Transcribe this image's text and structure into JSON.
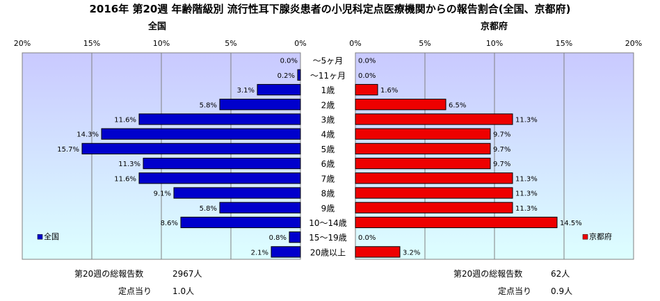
{
  "title": "2016年 第20週 年齢階級別 流行性耳下腺炎患者の小児科定点医療機関からの報告割合(全国、京都府)",
  "colors": {
    "national_bar": "#0000CC",
    "kyoto_bar": "#EE0000",
    "plot_top": "#C9C9FF",
    "plot_bottom": "#DDFFFF"
  },
  "chart_data": [
    {
      "type": "bar",
      "orientation": "horizontal",
      "direction": "right-to-left",
      "title": "全国",
      "legend": "全国",
      "legend_position": "bottom-left",
      "xlim": [
        0,
        20
      ],
      "x_ticks": [
        "20%",
        "15%",
        "10%",
        "5%",
        "0%"
      ],
      "grid": true,
      "categories": [
        "～5ヶ月",
        "～11ヶ月",
        "1歳",
        "2歳",
        "3歳",
        "4歳",
        "5歳",
        "6歳",
        "7歳",
        "8歳",
        "9歳",
        "10～14歳",
        "15～19歳",
        "20歳以上"
      ],
      "values": [
        0.0,
        0.2,
        3.1,
        5.8,
        11.6,
        14.3,
        15.7,
        11.3,
        11.6,
        9.1,
        5.8,
        8.6,
        0.8,
        2.1
      ],
      "labels": [
        "0.0%",
        "0.2%",
        "3.1%",
        "5.8%",
        "11.6%",
        "14.3%",
        "15.7%",
        "11.3%",
        "11.6%",
        "9.1%",
        "5.8%",
        "8.6%",
        "0.8%",
        "2.1%"
      ]
    },
    {
      "type": "bar",
      "orientation": "horizontal",
      "direction": "left-to-right",
      "title": "京都府",
      "legend": "京都府",
      "legend_position": "bottom-right",
      "xlim": [
        0,
        20
      ],
      "x_ticks": [
        "0%",
        "5%",
        "10%",
        "15%",
        "20%"
      ],
      "grid": true,
      "categories": [
        "～5ヶ月",
        "～11ヶ月",
        "1歳",
        "2歳",
        "3歳",
        "4歳",
        "5歳",
        "6歳",
        "7歳",
        "8歳",
        "9歳",
        "10～14歳",
        "15～19歳",
        "20歳以上"
      ],
      "values": [
        0.0,
        0.0,
        1.6,
        6.5,
        11.3,
        9.7,
        9.7,
        9.7,
        11.3,
        11.3,
        11.3,
        14.5,
        0.0,
        3.2
      ],
      "labels": [
        "0.0%",
        "0.0%",
        "1.6%",
        "6.5%",
        "11.3%",
        "9.7%",
        "9.7%",
        "9.7%",
        "11.3%",
        "11.3%",
        "11.3%",
        "14.5%",
        "0.0%",
        "3.2%"
      ]
    }
  ],
  "footer": {
    "national_total_label": "第20週の総報告数",
    "national_total_value": "2967人",
    "national_per_label": "定点当り",
    "national_per_value": "1.0人",
    "kyoto_total_label": "第20週の総報告数",
    "kyoto_total_value": "62人",
    "kyoto_per_label": "定点当り",
    "kyoto_per_value": "0.9人"
  }
}
